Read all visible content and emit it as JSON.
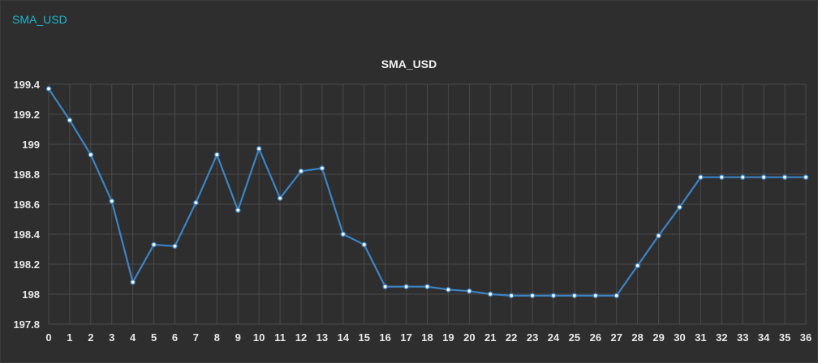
{
  "panel": {
    "title": "SMA_USD"
  },
  "chart_data": {
    "type": "line",
    "title": "SMA_USD",
    "xlabel": "",
    "ylabel": "",
    "x": [
      0,
      1,
      2,
      3,
      4,
      5,
      6,
      7,
      8,
      9,
      10,
      11,
      12,
      13,
      14,
      15,
      16,
      17,
      18,
      19,
      20,
      21,
      22,
      23,
      24,
      25,
      26,
      27,
      28,
      29,
      30,
      31,
      32,
      33,
      34,
      35,
      36
    ],
    "series": [
      {
        "values": [
          199.37,
          199.16,
          198.93,
          198.62,
          198.08,
          198.33,
          198.32,
          198.61,
          198.93,
          198.56,
          198.97,
          198.64,
          198.82,
          198.84,
          198.4,
          198.33,
          198.05,
          198.05,
          198.05,
          198.03,
          198.02,
          198.0,
          197.99,
          197.99,
          197.99,
          197.99,
          197.99,
          197.99,
          198.19,
          198.39,
          198.58,
          198.78,
          198.78,
          198.78,
          198.78,
          198.78,
          198.78
        ],
        "color": "#3b84c4"
      }
    ],
    "xlim": [
      0,
      36
    ],
    "ylim": [
      197.8,
      199.4
    ],
    "x_ticks": [
      "0",
      "1",
      "2",
      "3",
      "4",
      "5",
      "6",
      "7",
      "8",
      "9",
      "10",
      "11",
      "12",
      "13",
      "14",
      "15",
      "16",
      "17",
      "18",
      "19",
      "20",
      "21",
      "22",
      "23",
      "24",
      "25",
      "26",
      "27",
      "28",
      "29",
      "30",
      "31",
      "32",
      "33",
      "34",
      "35",
      "36"
    ],
    "y_ticks": [
      {
        "value": 197.8,
        "label": "197.8"
      },
      {
        "value": 198.0,
        "label": "198"
      },
      {
        "value": 198.2,
        "label": "198.2"
      },
      {
        "value": 198.4,
        "label": "198.4"
      },
      {
        "value": 198.6,
        "label": "198.6"
      },
      {
        "value": 198.8,
        "label": "198.8"
      },
      {
        "value": 199.0,
        "label": "199"
      },
      {
        "value": 199.2,
        "label": "199.2"
      },
      {
        "value": 199.4,
        "label": "199.4"
      }
    ],
    "grid": true,
    "colors": {
      "line": "#3b84c4",
      "marker_fill": "#ffffff",
      "grid": "#4a4a4a"
    }
  }
}
